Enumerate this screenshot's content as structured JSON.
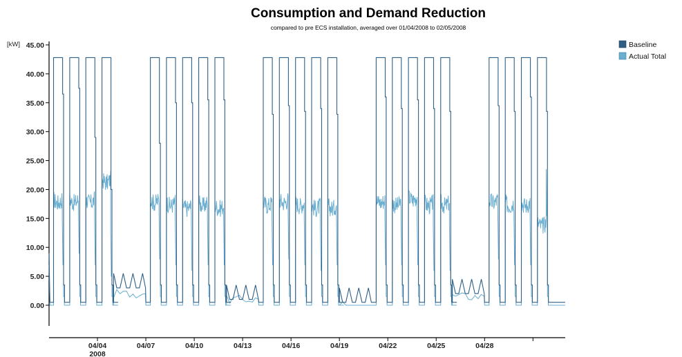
{
  "chart_data": {
    "type": "line",
    "title": "Consumption and Demand Reduction",
    "subtitle": "compared to pre ECS installation, averaged over 01/04/2008 to 02/05/2008",
    "ylabel": "[kW]",
    "xlabel": "",
    "ylim": [
      -3.2,
      45.5
    ],
    "xlim": [
      0.0,
      32.0
    ],
    "y_ticks": [
      "45.00",
      "40.00",
      "35.00",
      "30.00",
      "25.00",
      "20.00",
      "15.00",
      "10.00",
      "5.00",
      "0.00"
    ],
    "x_ticks": [
      {
        "day": 3,
        "label": "04/04",
        "sub": "2008"
      },
      {
        "day": 6,
        "label": "04/07",
        "sub": ""
      },
      {
        "day": 9,
        "label": "04/10",
        "sub": ""
      },
      {
        "day": 12,
        "label": "04/13",
        "sub": ""
      },
      {
        "day": 15,
        "label": "04/16",
        "sub": ""
      },
      {
        "day": 18,
        "label": "04/19",
        "sub": ""
      },
      {
        "day": 21,
        "label": "04/22",
        "sub": ""
      },
      {
        "day": 24,
        "label": "04/25",
        "sub": ""
      },
      {
        "day": 27,
        "label": "04/28",
        "sub": ""
      },
      {
        "day": 30,
        "label": "",
        "sub": ""
      }
    ],
    "grid": false,
    "legend_position": "top-right",
    "series": [
      {
        "name": "Baseline",
        "color": "#2e5f86",
        "days": [
          {
            "start": 0.28,
            "end": 0.9,
            "base": 0.5,
            "level": 42.8,
            "tail": 36.5
          },
          {
            "start": 1.28,
            "end": 1.9,
            "base": 0.5,
            "level": 42.8,
            "tail": 37.5
          },
          {
            "start": 2.28,
            "end": 2.9,
            "base": 0.5,
            "level": 42.8,
            "tail": 29.0
          },
          {
            "start": 3.28,
            "end": 3.9,
            "base": 0.5,
            "level": 42.8,
            "tail": 20.0
          },
          {
            "start": 6.28,
            "end": 6.9,
            "base": 0.5,
            "level": 42.8,
            "tail": 28.0
          },
          {
            "start": 7.28,
            "end": 7.9,
            "base": 0.5,
            "level": 42.8,
            "tail": 35.0
          },
          {
            "start": 8.28,
            "end": 8.9,
            "base": 0.5,
            "level": 42.8,
            "tail": 35.0
          },
          {
            "start": 9.28,
            "end": 9.9,
            "base": 0.5,
            "level": 42.8,
            "tail": 35.5
          },
          {
            "start": 10.28,
            "end": 10.9,
            "base": 0.5,
            "level": 42.8,
            "tail": 35.5
          },
          {
            "start": 13.28,
            "end": 13.9,
            "base": 0.5,
            "level": 42.8,
            "tail": 33.0
          },
          {
            "start": 14.28,
            "end": 14.9,
            "base": 0.5,
            "level": 42.8,
            "tail": 34.5
          },
          {
            "start": 15.28,
            "end": 15.9,
            "base": 0.5,
            "level": 42.8,
            "tail": 33.5
          },
          {
            "start": 16.28,
            "end": 16.9,
            "base": 0.5,
            "level": 42.8,
            "tail": 34.0
          },
          {
            "start": 17.28,
            "end": 17.9,
            "base": 0.5,
            "level": 42.8,
            "tail": 33.0
          },
          {
            "start": 20.28,
            "end": 20.9,
            "base": 0.5,
            "level": 42.8,
            "tail": 36.0
          },
          {
            "start": 21.28,
            "end": 21.9,
            "base": 0.5,
            "level": 42.8,
            "tail": 34.0
          },
          {
            "start": 22.28,
            "end": 22.9,
            "base": 0.5,
            "level": 42.8,
            "tail": 35.5
          },
          {
            "start": 23.28,
            "end": 23.9,
            "base": 0.5,
            "level": 42.8,
            "tail": 34.0
          },
          {
            "start": 24.28,
            "end": 24.9,
            "base": 0.5,
            "level": 42.8,
            "tail": 33.5
          },
          {
            "start": 27.28,
            "end": 27.9,
            "base": 0.5,
            "level": 42.8,
            "tail": 34.5
          },
          {
            "start": 28.28,
            "end": 28.9,
            "base": 0.5,
            "level": 42.8,
            "tail": 33.5
          },
          {
            "start": 29.28,
            "end": 29.9,
            "base": 0.5,
            "level": 42.8,
            "tail": 36.0
          },
          {
            "start": 30.28,
            "end": 30.9,
            "base": 0.5,
            "level": 42.8,
            "tail": 33.5
          }
        ],
        "weekends": [
          {
            "start": 4.0,
            "end": 6.0,
            "level": 3.0
          },
          {
            "start": 11.0,
            "end": 13.0,
            "level": 1.0
          },
          {
            "start": 18.0,
            "end": 20.0,
            "level": 0.5
          },
          {
            "start": 25.0,
            "end": 27.0,
            "level": 2.0
          }
        ]
      },
      {
        "name": "Actual Total",
        "color": "#6aaed0",
        "days": [
          {
            "start": 0.28,
            "end": 0.9,
            "base": 0.0,
            "level": 19.5,
            "tail": 7.0
          },
          {
            "start": 1.28,
            "end": 1.9,
            "base": 0.0,
            "level": 19.5,
            "tail": 9.0
          },
          {
            "start": 2.28,
            "end": 2.9,
            "base": 0.0,
            "level": 19.5,
            "tail": 7.0
          },
          {
            "start": 3.28,
            "end": 3.9,
            "base": 0.0,
            "level": 23.0,
            "tail": 5.0
          },
          {
            "start": 6.28,
            "end": 6.9,
            "base": 0.0,
            "level": 19.5,
            "tail": 8.0
          },
          {
            "start": 7.28,
            "end": 7.9,
            "base": 0.0,
            "level": 19.0,
            "tail": 7.0
          },
          {
            "start": 8.28,
            "end": 8.9,
            "base": 0.0,
            "level": 18.5,
            "tail": 6.0
          },
          {
            "start": 9.28,
            "end": 9.9,
            "base": 0.0,
            "level": 19.0,
            "tail": 7.0
          },
          {
            "start": 10.28,
            "end": 10.9,
            "base": 0.0,
            "level": 18.5,
            "tail": 7.0
          },
          {
            "start": 13.28,
            "end": 13.9,
            "base": 0.0,
            "level": 19.0,
            "tail": 7.0
          },
          {
            "start": 14.28,
            "end": 14.9,
            "base": 0.0,
            "level": 19.5,
            "tail": 8.0
          },
          {
            "start": 15.28,
            "end": 15.9,
            "base": 0.0,
            "level": 19.0,
            "tail": 7.0
          },
          {
            "start": 16.28,
            "end": 16.9,
            "base": 0.0,
            "level": 18.5,
            "tail": 6.0
          },
          {
            "start": 17.28,
            "end": 17.9,
            "base": 0.0,
            "level": 18.5,
            "tail": 7.0
          },
          {
            "start": 20.28,
            "end": 20.9,
            "base": 0.0,
            "level": 19.5,
            "tail": 7.0
          },
          {
            "start": 21.28,
            "end": 21.9,
            "base": 0.0,
            "level": 19.0,
            "tail": 7.0
          },
          {
            "start": 22.28,
            "end": 22.9,
            "base": 0.0,
            "level": 20.0,
            "tail": 7.0
          },
          {
            "start": 23.28,
            "end": 23.9,
            "base": 0.0,
            "level": 19.0,
            "tail": 6.0
          },
          {
            "start": 24.28,
            "end": 24.9,
            "base": 0.0,
            "level": 19.0,
            "tail": 6.0
          },
          {
            "start": 27.28,
            "end": 27.9,
            "base": 0.0,
            "level": 19.5,
            "tail": 8.0
          },
          {
            "start": 28.28,
            "end": 28.9,
            "base": 0.0,
            "level": 19.0,
            "tail": 7.0
          },
          {
            "start": 29.28,
            "end": 29.9,
            "base": 0.0,
            "level": 19.0,
            "tail": 7.0
          },
          {
            "start": 30.28,
            "end": 30.9,
            "base": 0.0,
            "level": 15.5,
            "tail": 15.5
          }
        ],
        "weekends": [
          {
            "start": 4.0,
            "end": 6.0,
            "level": 2.0
          },
          {
            "start": 11.0,
            "end": 13.0,
            "level": 1.0
          },
          {
            "start": 18.0,
            "end": 20.0,
            "level": 0.0
          },
          {
            "start": 25.0,
            "end": 27.0,
            "level": 1.5
          }
        ]
      }
    ]
  }
}
